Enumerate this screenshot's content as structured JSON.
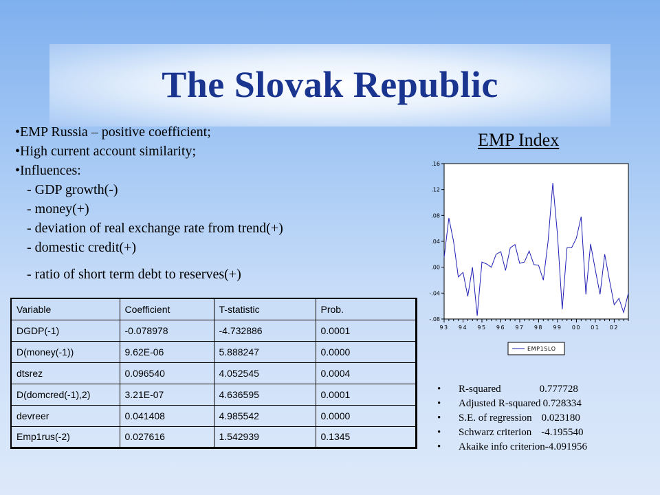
{
  "title": "The Slovak Republic",
  "bullets": [
    "•EMP Russia – positive coefficient;",
    "•High current account similarity;",
    "•Influences:"
  ],
  "influences": [
    "- GDP growth(-)",
    "- money(+)",
    "- deviation of real exchange rate from trend(+)",
    "- domestic credit(+)",
    "- ratio of short term debt to reserves(+)"
  ],
  "chart_title": "EMP Index",
  "chart_data": {
    "type": "line",
    "title": "EMP Index",
    "x_tick_labels": [
      "93",
      "94",
      "95",
      "96",
      "97",
      "98",
      "99",
      "00",
      "01",
      "02"
    ],
    "y_tick_labels": [
      ".16",
      ".12",
      ".08",
      ".04",
      ".00",
      "-.04",
      "-.08"
    ],
    "ylim": [
      -0.08,
      0.16
    ],
    "x_start": 1993.0,
    "x_end": 2002.75,
    "series": [
      {
        "name": "EMP1SLO",
        "color": "#1f1fb4",
        "x": [
          1993.0,
          1993.25,
          1993.5,
          1993.75,
          1994.0,
          1994.25,
          1994.5,
          1994.75,
          1995.0,
          1995.25,
          1995.5,
          1995.75,
          1996.0,
          1996.25,
          1996.5,
          1996.75,
          1997.0,
          1997.25,
          1997.5,
          1997.75,
          1998.0,
          1998.25,
          1998.5,
          1998.75,
          1999.0,
          1999.25,
          1999.5,
          1999.75,
          2000.0,
          2000.25,
          2000.5,
          2000.75,
          2001.0,
          2001.25,
          2001.5,
          2001.75,
          2002.0,
          2002.25,
          2002.5,
          2002.75
        ],
        "values": [
          0.015,
          0.076,
          0.04,
          -0.015,
          -0.008,
          -0.045,
          0.0,
          -0.075,
          0.008,
          0.005,
          0.0,
          0.02,
          0.024,
          -0.005,
          0.03,
          0.035,
          0.006,
          0.008,
          0.025,
          0.004,
          0.003,
          -0.02,
          0.04,
          0.13,
          0.05,
          -0.065,
          0.03,
          0.03,
          0.045,
          0.078,
          -0.042,
          0.036,
          -0.004,
          -0.042,
          0.02,
          -0.02,
          -0.058,
          -0.048,
          -0.07,
          -0.04
        ]
      }
    ],
    "legend": [
      "EMP1SLO"
    ],
    "legend_position": "bottom"
  },
  "table": {
    "headers": [
      "Variable",
      "Coefficient",
      "T-statistic",
      "Prob."
    ],
    "rows": [
      [
        "DGDP(-1)",
        "-0.078978",
        "-4.732886",
        "0.0001"
      ],
      [
        "D(money(-1))",
        "9.62E-06",
        "5.888247",
        "0.0000"
      ],
      [
        "dtsrez",
        "0.096540",
        "4.052545",
        "0.0004"
      ],
      [
        "D(domcred(-1),2)",
        "3.21E-07",
        "4.636595",
        "0.0001"
      ],
      [
        "devreer",
        "0.041408",
        "4.985542",
        "0.0000"
      ],
      [
        "Emp1rus(-2)",
        "0.027616",
        "1.542939",
        "0.1345"
      ]
    ]
  },
  "stats": [
    {
      "label": "R-squared",
      "value": "0.777728"
    },
    {
      "label": "Adjusted R-squared",
      "value": "0.728334"
    },
    {
      "label": "S.E. of regression",
      "value": "0.023180"
    },
    {
      "label": "Schwarz criterion",
      "value": "-4.195540"
    },
    {
      "label": "Akaike info criterion",
      "value": "-4.091956"
    }
  ],
  "bullet_char": "•"
}
